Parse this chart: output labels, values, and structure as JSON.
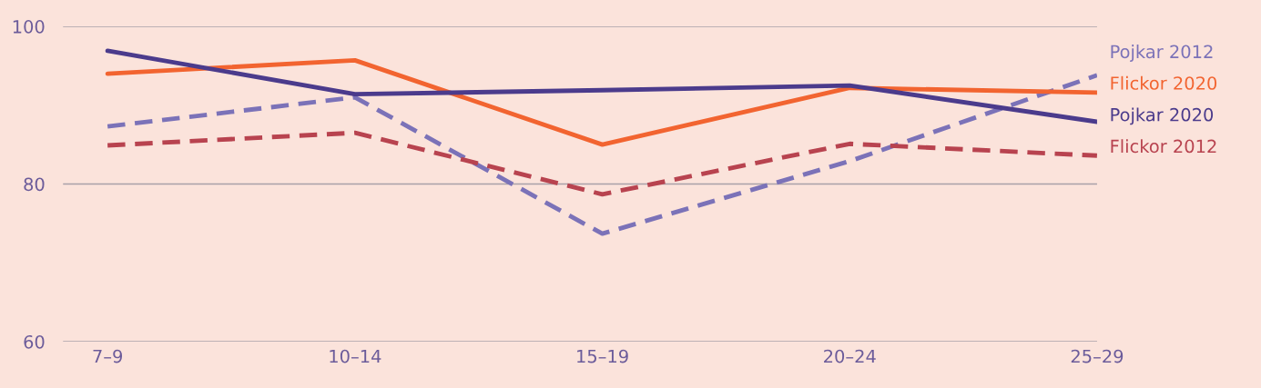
{
  "chart_data": {
    "type": "line",
    "categories": [
      "7–9",
      "10–14",
      "15–19",
      "20–24",
      "25–29"
    ],
    "series": [
      {
        "name": "Pojkar 2012",
        "color": "#7b72b8",
        "line_style": "dashed",
        "values": [
          87.3,
          91.0,
          73.7,
          82.9,
          93.8
        ]
      },
      {
        "name": "Flickor 2020",
        "color": "#f26430",
        "line_style": "solid",
        "values": [
          94.0,
          95.7,
          85.0,
          92.2,
          91.6
        ]
      },
      {
        "name": "Pojkar 2020",
        "color": "#4b3b8c",
        "line_style": "solid",
        "values": [
          96.9,
          91.4,
          91.9,
          92.5,
          87.9
        ]
      },
      {
        "name": "Flickor 2012",
        "color": "#b8434f",
        "line_style": "dashed",
        "values": [
          84.9,
          86.5,
          78.7,
          85.1,
          83.6
        ]
      }
    ],
    "ylim": [
      60,
      100
    ],
    "yticks": [
      60,
      80,
      100
    ],
    "grid": "y",
    "legend": "right",
    "marker": "none"
  }
}
